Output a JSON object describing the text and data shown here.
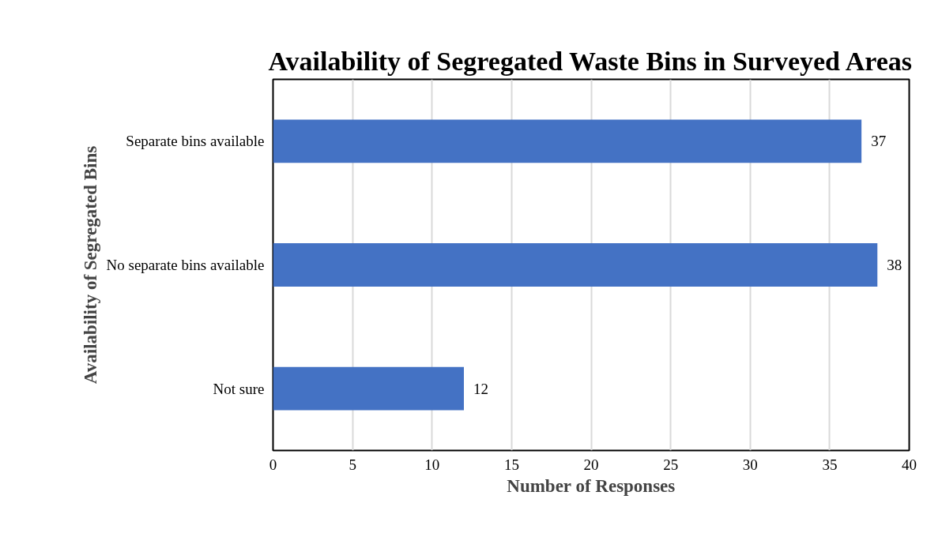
{
  "chart_data": {
    "type": "bar",
    "orientation": "horizontal",
    "title": "Availability of Segregated Waste Bins in Surveyed Areas",
    "xlabel": "Number of Responses",
    "ylabel": "Availability of Segregated Bins",
    "categories": [
      "Separate bins available",
      "No separate bins available",
      "Not sure"
    ],
    "values": [
      37,
      38,
      12
    ],
    "color": "#4472c4",
    "xlim": [
      0,
      40
    ],
    "xticks": [
      0,
      5,
      10,
      15,
      20,
      25,
      30,
      35,
      40
    ],
    "grid": "x",
    "data_labels": true
  }
}
